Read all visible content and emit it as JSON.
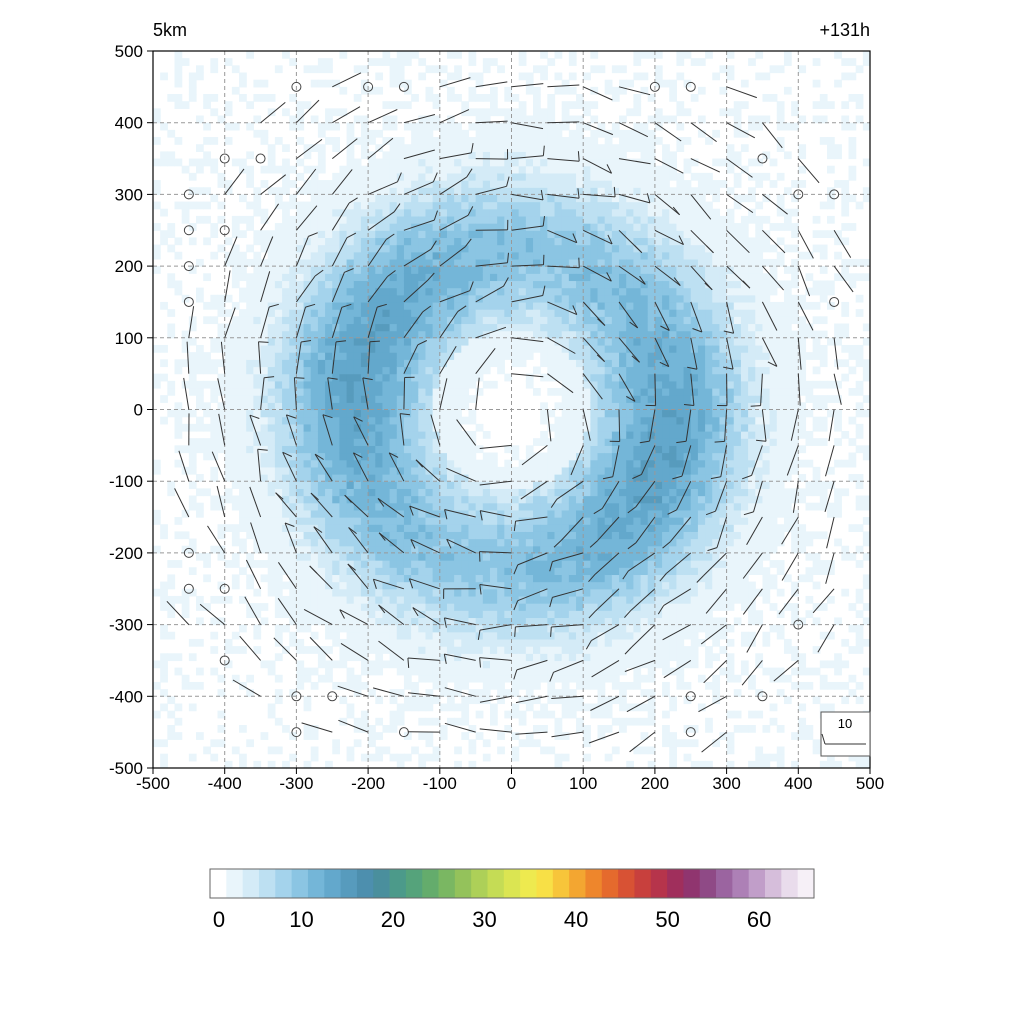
{
  "chart_data": {
    "type": "heatmap",
    "title_left": "5km",
    "title_right": "+131h",
    "xlabel": "",
    "ylabel": "",
    "x_ticks": [
      -500,
      -400,
      -300,
      -200,
      -100,
      0,
      100,
      200,
      300,
      400,
      500
    ],
    "y_ticks": [
      500,
      400,
      300,
      200,
      100,
      0,
      -100,
      -200,
      -300,
      -400,
      -500
    ],
    "xlim": [
      -500,
      500
    ],
    "ylim": [
      -500,
      500
    ],
    "grid": true,
    "field": {
      "description_units": "",
      "ring_radius": 220,
      "ring_width": 120,
      "peak_value": 14,
      "eye_radius": 110
    },
    "wind_barb_spacing": 50,
    "wind_barb_reference": "10",
    "colorbar": {
      "ticks": [
        0,
        10,
        20,
        30,
        40,
        50,
        60
      ],
      "min": 0,
      "max": 66,
      "colors": [
        "#ffffff",
        "#e9f5fb",
        "#d4ebf7",
        "#bde0f2",
        "#a4d3ec",
        "#8bc5e3",
        "#74b6d8",
        "#63a8cc",
        "#579bbd",
        "#4d8fae",
        "#4a8f9d",
        "#4c9a8a",
        "#55a37b",
        "#64ac6c",
        "#7ab762",
        "#94c25b",
        "#add058",
        "#c5dc55",
        "#dbe552",
        "#eeea4f",
        "#f8e046",
        "#f7c53a",
        "#f3a631",
        "#ee862c",
        "#e56a2d",
        "#d85234",
        "#c8403d",
        "#b6344b",
        "#a02f5c",
        "#90356f",
        "#8f4a86",
        "#9b64a0",
        "#ad80b6",
        "#c19ec9",
        "#d6bedb",
        "#e9dcec",
        "#f6f0f7"
      ]
    }
  }
}
